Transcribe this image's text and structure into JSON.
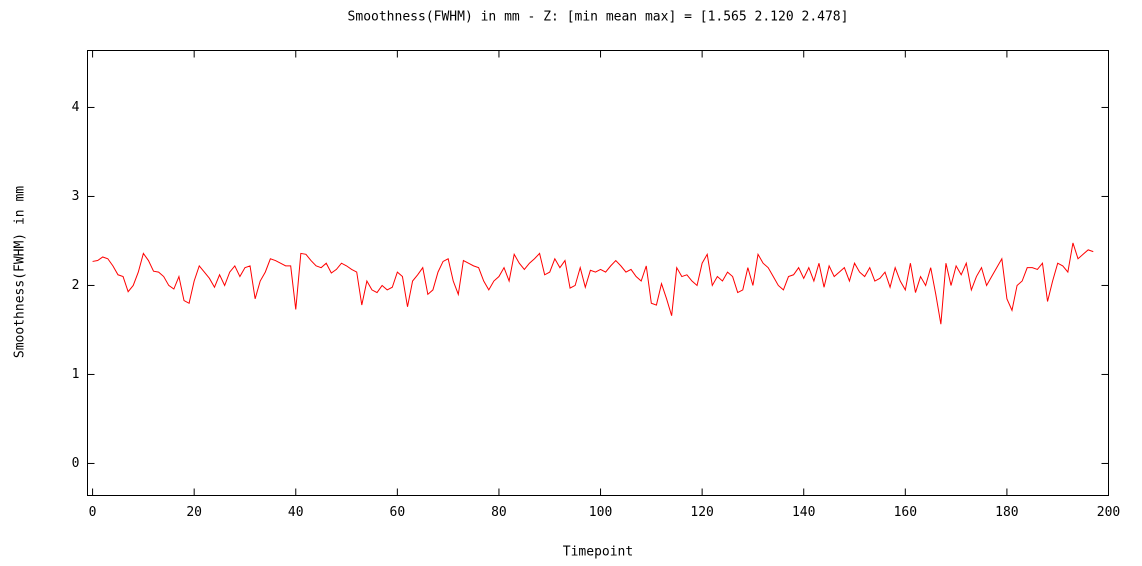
{
  "chart_data": {
    "type": "line",
    "title": "Smoothness(FWHM) in mm - Z: [min mean max] = [1.565 2.120 2.478]",
    "xlabel": "Timepoint",
    "ylabel": "Smoothness(FWHM) in mm",
    "xlim": [
      -1,
      200
    ],
    "ylim": [
      -0.36,
      4.64
    ],
    "xticks": [
      0,
      20,
      40,
      60,
      80,
      100,
      120,
      140,
      160,
      180,
      200
    ],
    "yticks": [
      0,
      1,
      2,
      3,
      4
    ],
    "x": [
      0,
      1,
      2,
      3,
      4,
      5,
      6,
      7,
      8,
      9,
      10,
      11,
      12,
      13,
      14,
      15,
      16,
      17,
      18,
      19,
      20,
      21,
      22,
      23,
      24,
      25,
      26,
      27,
      28,
      29,
      30,
      31,
      32,
      33,
      34,
      35,
      36,
      37,
      38,
      39,
      40,
      41,
      42,
      43,
      44,
      45,
      46,
      47,
      48,
      49,
      50,
      51,
      52,
      53,
      54,
      55,
      56,
      57,
      58,
      59,
      60,
      61,
      62,
      63,
      64,
      65,
      66,
      67,
      68,
      69,
      70,
      71,
      72,
      73,
      74,
      75,
      76,
      77,
      78,
      79,
      80,
      81,
      82,
      83,
      84,
      85,
      86,
      87,
      88,
      89,
      90,
      91,
      92,
      93,
      94,
      95,
      96,
      97,
      98,
      99,
      100,
      101,
      102,
      103,
      104,
      105,
      106,
      107,
      108,
      109,
      110,
      111,
      112,
      113,
      114,
      115,
      116,
      117,
      118,
      119,
      120,
      121,
      122,
      123,
      124,
      125,
      126,
      127,
      128,
      129,
      130,
      131,
      132,
      133,
      134,
      135,
      136,
      137,
      138,
      139,
      140,
      141,
      142,
      143,
      144,
      145,
      146,
      147,
      148,
      149,
      150,
      151,
      152,
      153,
      154,
      155,
      156,
      157,
      158,
      159,
      160,
      161,
      162,
      163,
      164,
      165,
      166,
      167,
      168,
      169,
      170,
      171,
      172,
      173,
      174,
      175,
      176,
      177,
      178,
      179,
      180,
      181,
      182,
      183,
      184,
      185,
      186,
      187,
      188,
      189,
      190,
      191,
      192,
      193,
      194,
      195,
      196,
      197
    ],
    "series": [
      {
        "color": "#ff0000",
        "values": [
          2.27,
          2.28,
          2.32,
          2.3,
          2.22,
          2.12,
          2.1,
          1.93,
          2.0,
          2.15,
          2.36,
          2.28,
          2.16,
          2.15,
          2.1,
          2.0,
          1.96,
          2.1,
          1.83,
          1.8,
          2.05,
          2.22,
          2.15,
          2.08,
          1.98,
          2.12,
          2.0,
          2.15,
          2.22,
          2.1,
          2.2,
          2.22,
          1.85,
          2.05,
          2.15,
          2.3,
          2.28,
          2.25,
          2.22,
          2.22,
          1.73,
          2.36,
          2.35,
          2.28,
          2.22,
          2.2,
          2.25,
          2.14,
          2.18,
          2.25,
          2.22,
          2.18,
          2.15,
          1.78,
          2.05,
          1.95,
          1.92,
          2.0,
          1.95,
          1.98,
          2.15,
          2.1,
          1.76,
          2.05,
          2.12,
          2.2,
          1.9,
          1.95,
          2.15,
          2.27,
          2.3,
          2.05,
          1.9,
          2.28,
          2.25,
          2.22,
          2.2,
          2.05,
          1.95,
          2.05,
          2.1,
          2.2,
          2.05,
          2.35,
          2.25,
          2.18,
          2.25,
          2.3,
          2.36,
          2.12,
          2.15,
          2.3,
          2.2,
          2.28,
          1.97,
          2.0,
          2.2,
          1.98,
          2.17,
          2.15,
          2.18,
          2.15,
          2.22,
          2.28,
          2.22,
          2.15,
          2.18,
          2.1,
          2.05,
          2.22,
          1.8,
          1.78,
          2.02,
          1.85,
          1.66,
          2.2,
          2.1,
          2.12,
          2.05,
          2.0,
          2.25,
          2.35,
          2.0,
          2.1,
          2.05,
          2.15,
          2.1,
          1.92,
          1.95,
          2.2,
          2.0,
          2.35,
          2.25,
          2.2,
          2.1,
          2.0,
          1.95,
          2.1,
          2.12,
          2.2,
          2.08,
          2.2,
          2.05,
          2.25,
          1.98,
          2.22,
          2.1,
          2.15,
          2.2,
          2.05,
          2.25,
          2.15,
          2.1,
          2.2,
          2.05,
          2.08,
          2.15,
          1.98,
          2.2,
          2.05,
          1.95,
          2.25,
          1.92,
          2.1,
          2.0,
          2.2,
          1.9,
          1.565,
          2.25,
          2.0,
          2.22,
          2.12,
          2.25,
          1.95,
          2.1,
          2.2,
          2.0,
          2.1,
          2.2,
          2.3,
          1.85,
          1.72,
          2.0,
          2.05,
          2.2,
          2.2,
          2.18,
          2.25,
          1.82,
          2.05,
          2.25,
          2.22,
          2.15,
          2.478,
          2.3,
          2.35,
          2.4,
          2.38
        ]
      }
    ]
  }
}
